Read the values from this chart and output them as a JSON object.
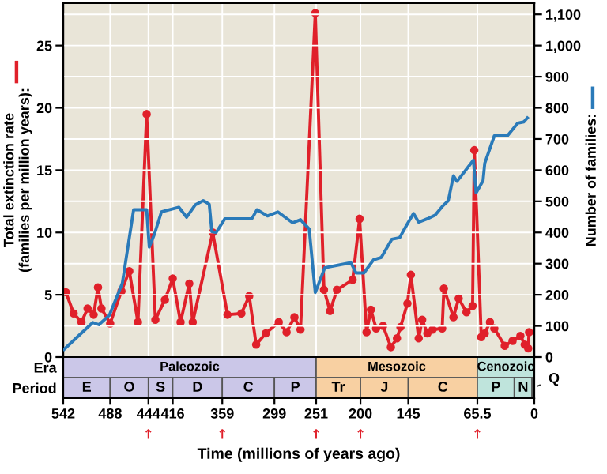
{
  "chart_data": [
    {
      "type": "line",
      "ylabel": "Total extinction rate\n(families per million years):",
      "y2label": "Number of families:",
      "xlim": [
        542,
        0
      ],
      "xticks": [
        542,
        488,
        444,
        416,
        359,
        299,
        251,
        200,
        145,
        65.5,
        0
      ],
      "tick_labels": "y",
      "ylim": [
        0,
        28.4
      ],
      "yticks": [
        0,
        5,
        10,
        15,
        20,
        25
      ],
      "y2lim": [
        0,
        1136
      ],
      "y2ticks": [
        0,
        {
          "value": 100,
          "label": "100"
        },
        {
          "value": 200,
          "label": "200"
        },
        {
          "value": 300,
          "label": "300"
        },
        {
          "value": 400,
          "label": "400"
        },
        {
          "value": 500,
          "label": "500"
        },
        {
          "value": 600,
          "label": "600"
        },
        {
          "value": 700,
          "label": "700"
        },
        {
          "value": 800,
          "label": "800"
        },
        {
          "value": 900,
          "label": "900"
        },
        {
          "value": 1000,
          "label": "1,000"
        },
        {
          "value": 1100,
          "label": "1,100"
        }
      ],
      "grid": true,
      "marker": "circle",
      "line_style": "solid",
      "series": [
        {
          "color": "#2a7ab9",
          "axis": "y2",
          "marker": "none",
          "x": [
            541,
            508,
            501,
            489,
            474,
            461,
            446,
            443,
            437,
            429,
            409,
            400,
            390,
            381,
            374,
            371,
            366,
            356,
            325,
            319,
            307,
            295,
            278,
            269,
            259,
            252,
            241,
            211,
            205,
            196,
            185,
            176,
            164,
            155,
            146,
            139,
            133,
            123,
            114,
            105,
            99,
            93,
            89,
            70,
            67,
            59,
            57,
            46,
            31,
            19,
            12,
            8
          ],
          "values": [
            25,
            111,
            104,
            134,
            237,
            473,
            473,
            353,
            395,
            466,
            481,
            449,
            489,
            502,
            491,
            403,
            400,
            444,
            444,
            473,
            453,
            466,
            431,
            441,
            411,
            207,
            287,
            303,
            270,
            270,
            312,
            320,
            378,
            383,
            428,
            461,
            433,
            444,
            456,
            486,
            502,
            582,
            564,
            632,
            527,
            566,
            622,
            710,
            710,
            751,
            755,
            768
          ]
        },
        {
          "color": "#e0202a",
          "axis": "y",
          "x": [
            539,
            530,
            521,
            514,
            507,
            502,
            498,
            488,
            475,
            466,
            456,
            446,
            436,
            425,
            416,
            407,
            397,
            393,
            370,
            353,
            337,
            328,
            320,
            309,
            294,
            285,
            276,
            269,
            252,
            242,
            235,
            227,
            209,
            201,
            193,
            188,
            182,
            174,
            165,
            158,
            154,
            146,
            142,
            133,
            129,
            123,
            117,
            106,
            104,
            93,
            87,
            78,
            71,
            69,
            61,
            57,
            51,
            46,
            34,
            25,
            16,
            11,
            7,
            6
          ],
          "values": [
            5.2,
            3.5,
            2.8,
            3.9,
            3.4,
            5.6,
            3.9,
            2.7,
            5.3,
            6.9,
            2.8,
            19.5,
            3.0,
            4.6,
            6.3,
            2.8,
            5.9,
            2.8,
            10.0,
            3.4,
            3.5,
            4.9,
            1.0,
            1.9,
            2.8,
            2.0,
            3.2,
            2.2,
            27.6,
            5.4,
            3.7,
            5.4,
            6.2,
            11.1,
            2.0,
            3.8,
            2.3,
            2.5,
            0.8,
            1.5,
            2.4,
            4.3,
            6.6,
            1.5,
            3.0,
            1.9,
            2.2,
            2.3,
            5.5,
            3.2,
            4.7,
            3.6,
            4.1,
            16.6,
            1.6,
            1.9,
            2.8,
            2.3,
            0.9,
            1.3,
            1.7,
            1.0,
            0.7,
            2.0
          ]
        }
      ]
    },
    {
      "type": "bar",
      "orientation": "horizontal",
      "categories": [
        "Era",
        "Period"
      ],
      "series": [
        {
          "base": [
            251,
            488
          ],
          "values": [
            291,
            54
          ],
          "value_labels": [
            "Paleozoic",
            "E"
          ],
          "colors": [
            "#cbc7e8",
            "#cbc7e8"
          ]
        },
        {
          "base": [
            65.5,
            444
          ],
          "values": [
            185.5,
            44
          ],
          "value_labels": [
            "Mesozoic",
            "O"
          ],
          "colors": [
            "#f8d0a2",
            "#cbc7e8"
          ]
        },
        {
          "base": [
            0,
            416
          ],
          "values": [
            65.5,
            28
          ],
          "value_labels": [
            "Cenozoic",
            "S"
          ],
          "colors": [
            "#bfe4dc",
            "#cbc7e8"
          ]
        },
        {
          "base": [
            null,
            359
          ],
          "values": [
            null,
            57
          ],
          "value_labels": [
            null,
            "D"
          ],
          "colors": [
            null,
            "#cbc7e8"
          ]
        },
        {
          "base": [
            null,
            299
          ],
          "values": [
            null,
            60
          ],
          "value_labels": [
            null,
            "C"
          ],
          "colors": [
            null,
            "#cbc7e8"
          ]
        },
        {
          "base": [
            null,
            251
          ],
          "values": [
            null,
            48
          ],
          "value_labels": [
            null,
            "P"
          ],
          "colors": [
            null,
            "#cbc7e8"
          ]
        },
        {
          "base": [
            null,
            200
          ],
          "values": [
            null,
            51
          ],
          "value_labels": [
            null,
            "Tr"
          ],
          "colors": [
            null,
            "#f8d0a2"
          ]
        },
        {
          "base": [
            null,
            145
          ],
          "values": [
            null,
            55
          ],
          "value_labels": [
            null,
            "J"
          ],
          "colors": [
            null,
            "#f8d0a2"
          ]
        },
        {
          "base": [
            null,
            65.5
          ],
          "values": [
            null,
            79.5
          ],
          "value_labels": [
            null,
            "C"
          ],
          "colors": [
            null,
            "#f8d0a2"
          ]
        },
        {
          "base": [
            null,
            23
          ],
          "values": [
            null,
            42.5
          ],
          "value_labels": [
            null,
            "P"
          ],
          "colors": [
            null,
            "#bfe4dc"
          ]
        },
        {
          "base": [
            null,
            2.6
          ],
          "values": [
            null,
            20.4
          ],
          "value_labels": [
            null,
            "N"
          ],
          "colors": [
            null,
            "#bfe4dc"
          ]
        },
        {
          "base": [
            null,
            0
          ],
          "values": [
            null,
            2.6
          ],
          "value_labels": [
            null,
            "Q"
          ],
          "colors": [
            null,
            "#bfe4dc"
          ]
        }
      ],
      "xlabel": "Time (millions of years ago)",
      "xlim": [
        542,
        0
      ],
      "xticks": [
        542,
        488,
        444,
        416,
        359,
        299,
        251,
        200,
        145,
        {
          "value": 65.5,
          "label": "65.5"
        },
        0
      ],
      "annotations": [
        {
          "text": "↑",
          "x": 444,
          "y": "Period"
        },
        {
          "text": "↑",
          "x": 359,
          "y": "Period"
        },
        {
          "text": "↑",
          "x": 251,
          "y": "Period"
        },
        {
          "text": "↑",
          "x": 200,
          "y": "Period"
        },
        {
          "text": "↑",
          "x": 65.5,
          "y": "Period"
        }
      ]
    }
  ]
}
